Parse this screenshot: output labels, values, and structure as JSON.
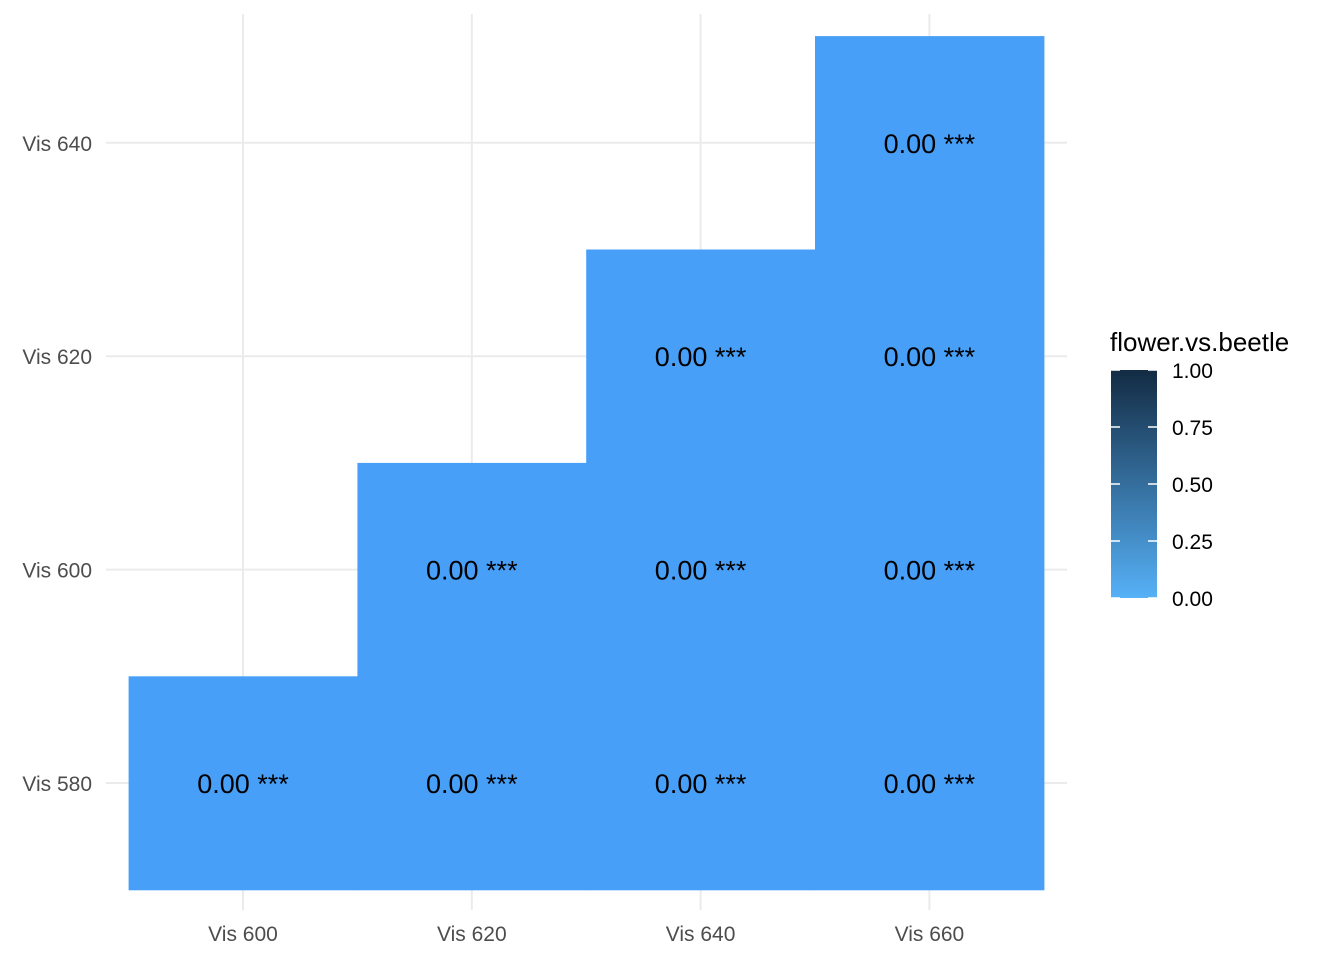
{
  "chart_data": {
    "type": "heatmap",
    "title": "",
    "xlabel": "",
    "ylabel": "",
    "x_categories": [
      "Vis 600",
      "Vis 620",
      "Vis 640",
      "Vis 660"
    ],
    "y_categories": [
      "Vis 580",
      "Vis 600",
      "Vis 620",
      "Vis 640"
    ],
    "cells": [
      {
        "x": "Vis 600",
        "y": "Vis 580",
        "value": 0.0,
        "label": "0.00 ***"
      },
      {
        "x": "Vis 620",
        "y": "Vis 580",
        "value": 0.0,
        "label": "0.00 ***"
      },
      {
        "x": "Vis 640",
        "y": "Vis 580",
        "value": 0.0,
        "label": "0.00 ***"
      },
      {
        "x": "Vis 660",
        "y": "Vis 580",
        "value": 0.0,
        "label": "0.00 ***"
      },
      {
        "x": "Vis 620",
        "y": "Vis 600",
        "value": 0.0,
        "label": "0.00 ***"
      },
      {
        "x": "Vis 640",
        "y": "Vis 600",
        "value": 0.0,
        "label": "0.00 ***"
      },
      {
        "x": "Vis 660",
        "y": "Vis 600",
        "value": 0.0,
        "label": "0.00 ***"
      },
      {
        "x": "Vis 640",
        "y": "Vis 620",
        "value": 0.0,
        "label": "0.00 ***"
      },
      {
        "x": "Vis 660",
        "y": "Vis 620",
        "value": 0.0,
        "label": "0.00 ***"
      },
      {
        "x": "Vis 660",
        "y": "Vis 640",
        "value": 0.0,
        "label": "0.00 ***"
      }
    ],
    "legend": {
      "title": "flower.vs.beetle",
      "placement": "right",
      "ticks": [
        {
          "value": 1.0,
          "label": "1.00"
        },
        {
          "value": 0.75,
          "label": "0.75"
        },
        {
          "value": 0.5,
          "label": "0.50"
        },
        {
          "value": 0.25,
          "label": "0.25"
        },
        {
          "value": 0.0,
          "label": "0.00"
        }
      ],
      "color_low": "#56B1F7",
      "color_high": "#132B43",
      "range": [
        0,
        1
      ]
    },
    "grid": true,
    "colors": {
      "cell_fill": "#479FF8",
      "grid": "#EBEBEB",
      "tick_label": "#4D4D4D",
      "text": "#000000"
    }
  }
}
